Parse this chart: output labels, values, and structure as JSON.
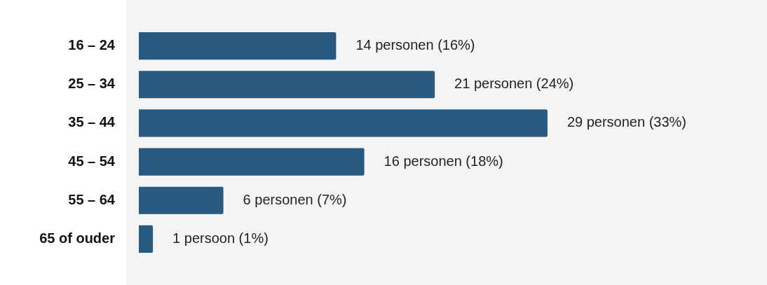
{
  "chart_data": {
    "type": "bar",
    "orientation": "horizontal",
    "categories": [
      "16 – 24",
      "25 – 34",
      "35 – 44",
      "45 – 54",
      "55 – 64",
      "65 of ouder"
    ],
    "values": [
      14,
      21,
      29,
      16,
      6,
      1
    ],
    "color": "#2b5a80",
    "value_labels": [
      "14 personen (16%)",
      "21 personen (24%)",
      "29 personen (33%)",
      "16 personen (18%)",
      "6 personen (7%)",
      "1 persoon (1%)"
    ],
    "grid": false,
    "legend": false
  }
}
